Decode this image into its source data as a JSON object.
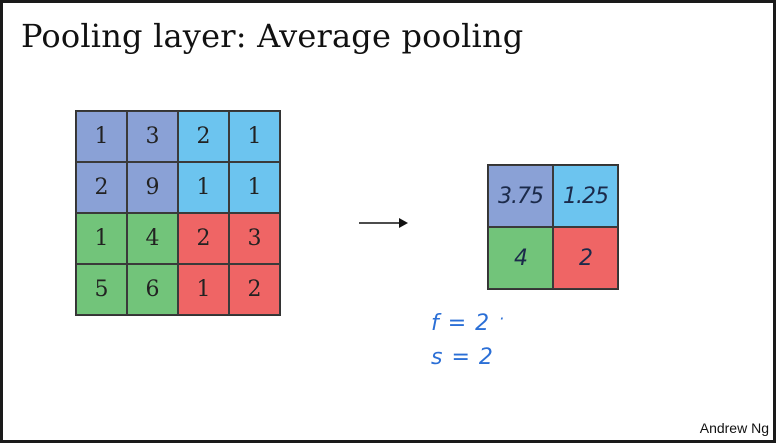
{
  "title": "Pooling layer: Average pooling",
  "input_grid": {
    "rows": [
      [
        {
          "value": "1",
          "color": "#8aa1d6"
        },
        {
          "value": "3",
          "color": "#8aa1d6"
        },
        {
          "value": "2",
          "color": "#6cc4ef"
        },
        {
          "value": "1",
          "color": "#6cc4ef"
        }
      ],
      [
        {
          "value": "2",
          "color": "#8aa1d6"
        },
        {
          "value": "9",
          "color": "#8aa1d6"
        },
        {
          "value": "1",
          "color": "#6cc4ef"
        },
        {
          "value": "1",
          "color": "#6cc4ef"
        }
      ],
      [
        {
          "value": "1",
          "color": "#72c47a"
        },
        {
          "value": "4",
          "color": "#72c47a"
        },
        {
          "value": "2",
          "color": "#ef6565"
        },
        {
          "value": "3",
          "color": "#ef6565"
        }
      ],
      [
        {
          "value": "5",
          "color": "#72c47a"
        },
        {
          "value": "6",
          "color": "#72c47a"
        },
        {
          "value": "1",
          "color": "#ef6565"
        },
        {
          "value": "2",
          "color": "#ef6565"
        }
      ]
    ]
  },
  "output_grid": {
    "rows": [
      [
        {
          "value": "3.75",
          "color": "#8aa1d6"
        },
        {
          "value": "1.25",
          "color": "#6cc4ef"
        }
      ],
      [
        {
          "value": "4",
          "color": "#72c47a"
        },
        {
          "value": "2",
          "color": "#ef6565"
        }
      ]
    ]
  },
  "annotations": {
    "f": "f = 2",
    "s": "s = 2",
    "dot": "·"
  },
  "credit": "Andrew Ng"
}
